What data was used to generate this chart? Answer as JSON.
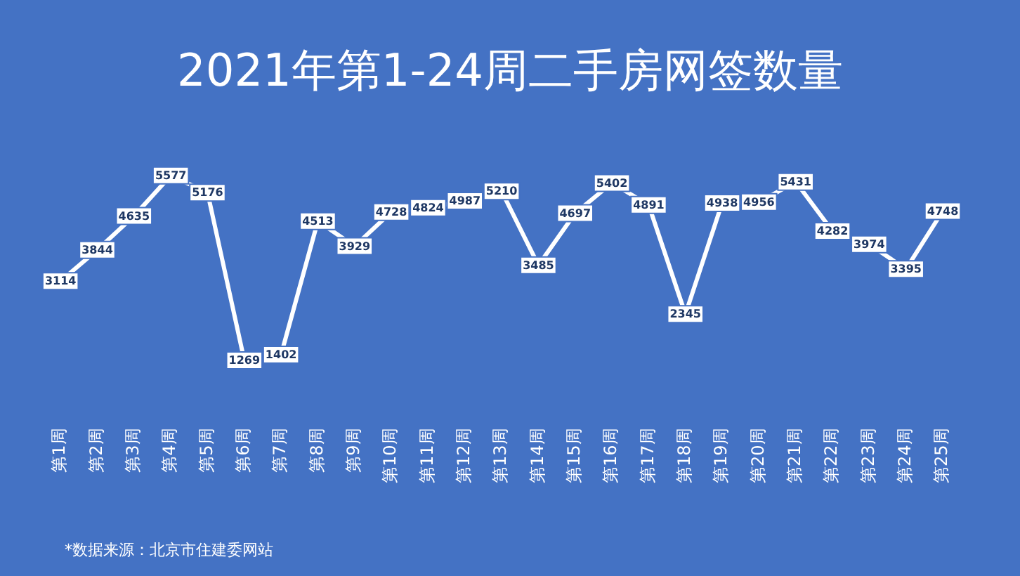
{
  "chart_data": {
    "type": "line",
    "title": "2021年第1-24周二手房网签数量",
    "categories": [
      "第1周",
      "第2周",
      "第3周",
      "第4周",
      "第5周",
      "第6周",
      "第7周",
      "第8周",
      "第9周",
      "第10周",
      "第11周",
      "第12周",
      "第13周",
      "第14周",
      "第15周",
      "第16周",
      "第17周",
      "第18周",
      "第19周",
      "第20周",
      "第21周",
      "第22周",
      "第23周",
      "第24周",
      "第25周"
    ],
    "series": [
      {
        "color": "#ffffff",
        "values": [
          3114,
          3844,
          4635,
          5577,
          5176,
          1269,
          1402,
          4513,
          3929,
          4728,
          4824,
          4987,
          5210,
          3485,
          4697,
          5402,
          4891,
          2345,
          4938,
          4956,
          5431,
          4282,
          3974,
          3395,
          4748
        ]
      }
    ],
    "data_labels": true,
    "marker": "square",
    "grid": false,
    "legend": false,
    "line_style": "solid",
    "tick_labels": "x",
    "annotations": [
      "*数据来源：北京市住建委网站"
    ]
  }
}
